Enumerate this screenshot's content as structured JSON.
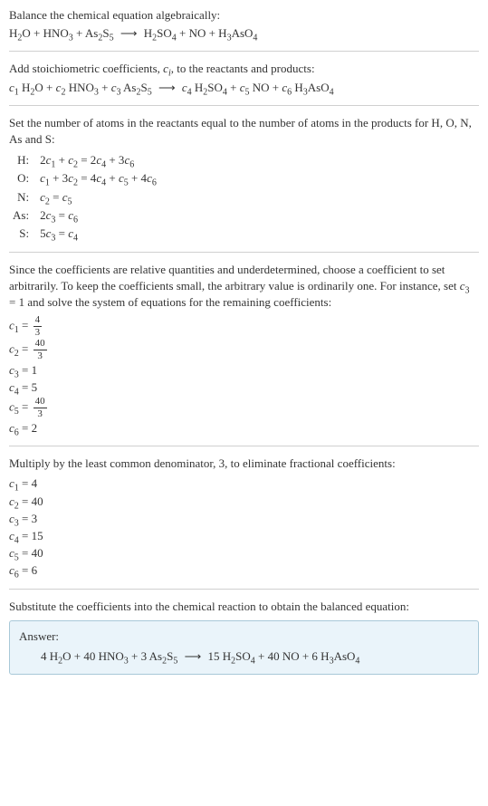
{
  "section1": {
    "intro": "Balance the chemical equation algebraically:",
    "eq_lhs_parts": [
      "H",
      "O + HNO",
      " + As",
      "S"
    ],
    "eq_rhs_parts": [
      "H",
      "SO",
      " + NO + H",
      "AsO"
    ]
  },
  "section2": {
    "intro_a": "Add stoichiometric coefficients, ",
    "intro_c": "c",
    "intro_b": ", to the reactants and products:"
  },
  "section3": {
    "intro1": "Set the number of atoms in the reactants equal to the number of atoms in the products for H, O, N, As and S:",
    "rows": [
      {
        "label": "H:",
        "lhs": "2",
        "c1": "c",
        "s1": "1",
        "plus1": " + ",
        "c2": "c",
        "s2": "2",
        "eq": " = 2",
        "c3": "c",
        "s3": "4",
        "plus2": " + 3",
        "c4": "c",
        "s4": "6"
      },
      {
        "label": "O:",
        "lhs": "",
        "c1": "c",
        "s1": "1",
        "plus1": " + 3",
        "c2": "c",
        "s2": "2",
        "eq": " = 4",
        "c3": "c",
        "s3": "4",
        "plus2": " + ",
        "c4": "c",
        "s4": "5",
        "plus3": " + 4",
        "c5": "c",
        "s5": "6"
      },
      {
        "label": "N:",
        "c1": "c",
        "s1": "2",
        "eq": " = ",
        "c2": "c",
        "s2": "5"
      },
      {
        "label": "As:",
        "lhs": "2",
        "c1": "c",
        "s1": "3",
        "eq": " = ",
        "c2": "c",
        "s2": "6"
      },
      {
        "label": "S:",
        "lhs": "5",
        "c1": "c",
        "s1": "3",
        "eq": " = ",
        "c2": "c",
        "s2": "4"
      }
    ]
  },
  "section4": {
    "intro_a": "Since the coefficients are relative quantities and underdetermined, choose a coefficient to set arbitrarily. To keep the coefficients small, the arbitrary value is ordinarily one. For instance, set ",
    "intro_c": "c",
    "intro_s": "3",
    "intro_b": " = 1 and solve the system of equations for the remaining coefficients:",
    "rows": [
      {
        "c": "c",
        "s": "1",
        "eq": " = ",
        "num": "4",
        "den": "3"
      },
      {
        "c": "c",
        "s": "2",
        "eq": " = ",
        "num": "40",
        "den": "3"
      },
      {
        "c": "c",
        "s": "3",
        "eq": " = 1"
      },
      {
        "c": "c",
        "s": "4",
        "eq": " = 5"
      },
      {
        "c": "c",
        "s": "5",
        "eq": " = ",
        "num": "40",
        "den": "3"
      },
      {
        "c": "c",
        "s": "6",
        "eq": " = 2"
      }
    ]
  },
  "section5": {
    "intro": "Multiply by the least common denominator, 3, to eliminate fractional coefficients:",
    "rows": [
      {
        "c": "c",
        "s": "1",
        "v": " = 4"
      },
      {
        "c": "c",
        "s": "2",
        "v": " = 40"
      },
      {
        "c": "c",
        "s": "3",
        "v": " = 3"
      },
      {
        "c": "c",
        "s": "4",
        "v": " = 15"
      },
      {
        "c": "c",
        "s": "5",
        "v": " = 40"
      },
      {
        "c": "c",
        "s": "6",
        "v": " = 6"
      }
    ]
  },
  "section6": {
    "intro": "Substitute the coefficients into the chemical reaction to obtain the balanced equation:",
    "answer_label": "Answer:",
    "answer_eq": {
      "a": "4 H",
      "b": "O + 40 HNO",
      "c": " + 3 As",
      "d": "S",
      "e": "15 H",
      "f": "SO",
      "g": " + 40 NO + 6 H",
      "h": "AsO"
    }
  },
  "subs": {
    "two": "2",
    "three": "3",
    "four": "4",
    "five": "5",
    "i": "i"
  },
  "arrow": "⟶"
}
